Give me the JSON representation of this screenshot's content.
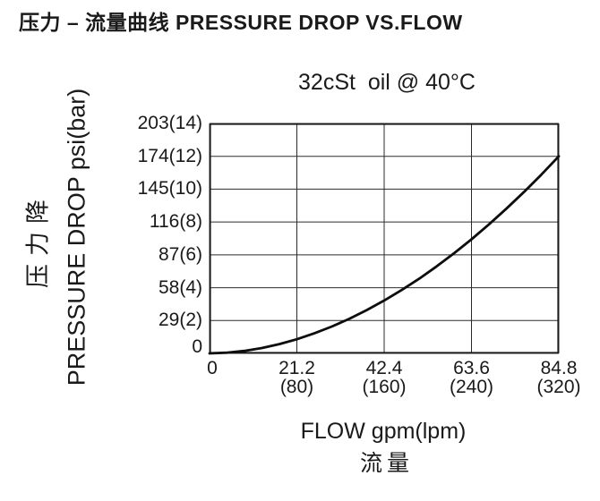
{
  "page": {
    "title": "压力 – 流量曲线 PRESSURE DROP VS.FLOW"
  },
  "chart_data": {
    "type": "line",
    "title": "32cSt  oil @ 40°C",
    "xlabel": "FLOW gpm(lpm)",
    "xlabel_zh": "流量",
    "ylabel": "PRESSURE DROP psi(bar)",
    "ylabel_zh": "压力降",
    "xlim": [
      0,
      84.8
    ],
    "ylim": [
      0,
      203
    ],
    "grid": true,
    "legend": "none",
    "x_ticks": [
      {
        "label": "0",
        "label2": "",
        "value": 0
      },
      {
        "label": "21.2",
        "label2": "(80)",
        "value": 21.2
      },
      {
        "label": "42.4",
        "label2": "(160)",
        "value": 42.4
      },
      {
        "label": "63.6",
        "label2": "(240)",
        "value": 63.6
      },
      {
        "label": "84.8",
        "label2": "(320)",
        "value": 84.8
      }
    ],
    "y_ticks": [
      {
        "label": "203(14)",
        "value": 203
      },
      {
        "label": "174(12)",
        "value": 174
      },
      {
        "label": "145(10)",
        "value": 145
      },
      {
        "label": "116(8)",
        "value": 116
      },
      {
        "label": "87(6)",
        "value": 87
      },
      {
        "label": "58(4)",
        "value": 58
      },
      {
        "label": "29(2)",
        "value": 29
      },
      {
        "label": "0",
        "value": 0
      }
    ],
    "series": [
      {
        "name": "pressure drop vs flow",
        "x": [
          0,
          4.24,
          8.48,
          12.72,
          16.96,
          21.2,
          25.44,
          29.68,
          33.92,
          38.16,
          42.4,
          46.64,
          50.88,
          55.12,
          59.36,
          63.6,
          67.84,
          72.08,
          76.32,
          80.56,
          84.8
        ],
        "y": [
          0,
          0.6,
          2.2,
          4.7,
          8.2,
          12.5,
          17.7,
          23.7,
          30.5,
          38.2,
          46.7,
          55.9,
          65.9,
          76.8,
          88.4,
          100.7,
          113.9,
          127.8,
          142.4,
          157.8,
          174
        ]
      }
    ],
    "colors": {
      "text": "#1a1a1a",
      "grid": "#2b2b2b",
      "axis": "#1a1a1a",
      "curve": "#0d0d0d",
      "background": "#ffffff"
    }
  }
}
